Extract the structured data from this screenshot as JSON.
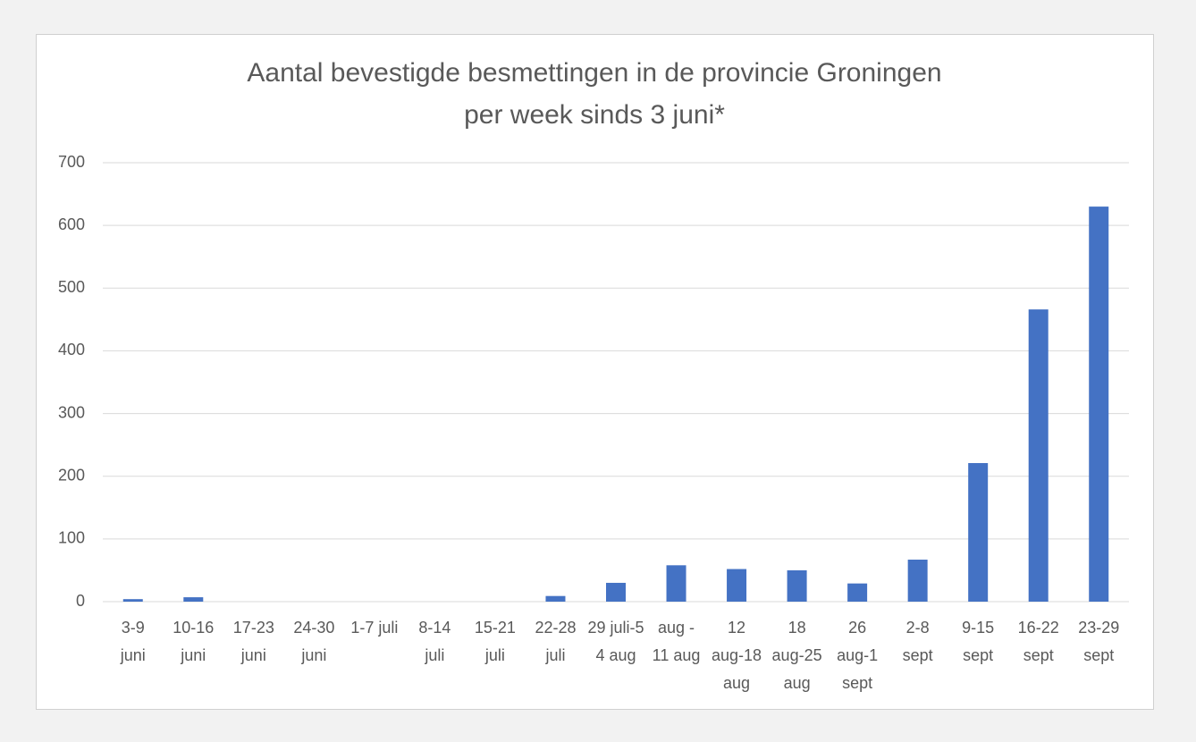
{
  "chart_data": {
    "type": "bar",
    "title": [
      "Aantal bevestigde besmettingen in de provincie Groningen",
      "per week sinds 3 juni*"
    ],
    "categories": [
      [
        "3-9",
        "juni"
      ],
      [
        "10-16",
        "juni"
      ],
      [
        "17-23",
        "juni"
      ],
      [
        "24-30",
        "juni"
      ],
      [
        "1-7 juli"
      ],
      [
        "8-14",
        "juli"
      ],
      [
        "15-21",
        "juli"
      ],
      [
        "22-28",
        "juli"
      ],
      [
        "29 juli-5",
        "4 aug"
      ],
      [
        "aug -",
        "11 aug"
      ],
      [
        "12",
        "aug-18",
        "aug"
      ],
      [
        "18",
        "aug-25",
        "aug"
      ],
      [
        "26",
        "aug-1",
        "sept"
      ],
      [
        "2-8",
        "sept"
      ],
      [
        "9-15",
        "sept"
      ],
      [
        "16-22",
        "sept"
      ],
      [
        "23-29",
        "sept"
      ]
    ],
    "values": [
      4,
      7,
      0,
      0,
      0,
      0,
      0,
      9,
      30,
      58,
      52,
      50,
      29,
      67,
      221,
      466,
      630
    ],
    "color": "#4472c4",
    "ylim": [
      0,
      700
    ],
    "yticks": [
      0,
      100,
      200,
      300,
      400,
      500,
      600,
      700
    ],
    "grid": true
  }
}
